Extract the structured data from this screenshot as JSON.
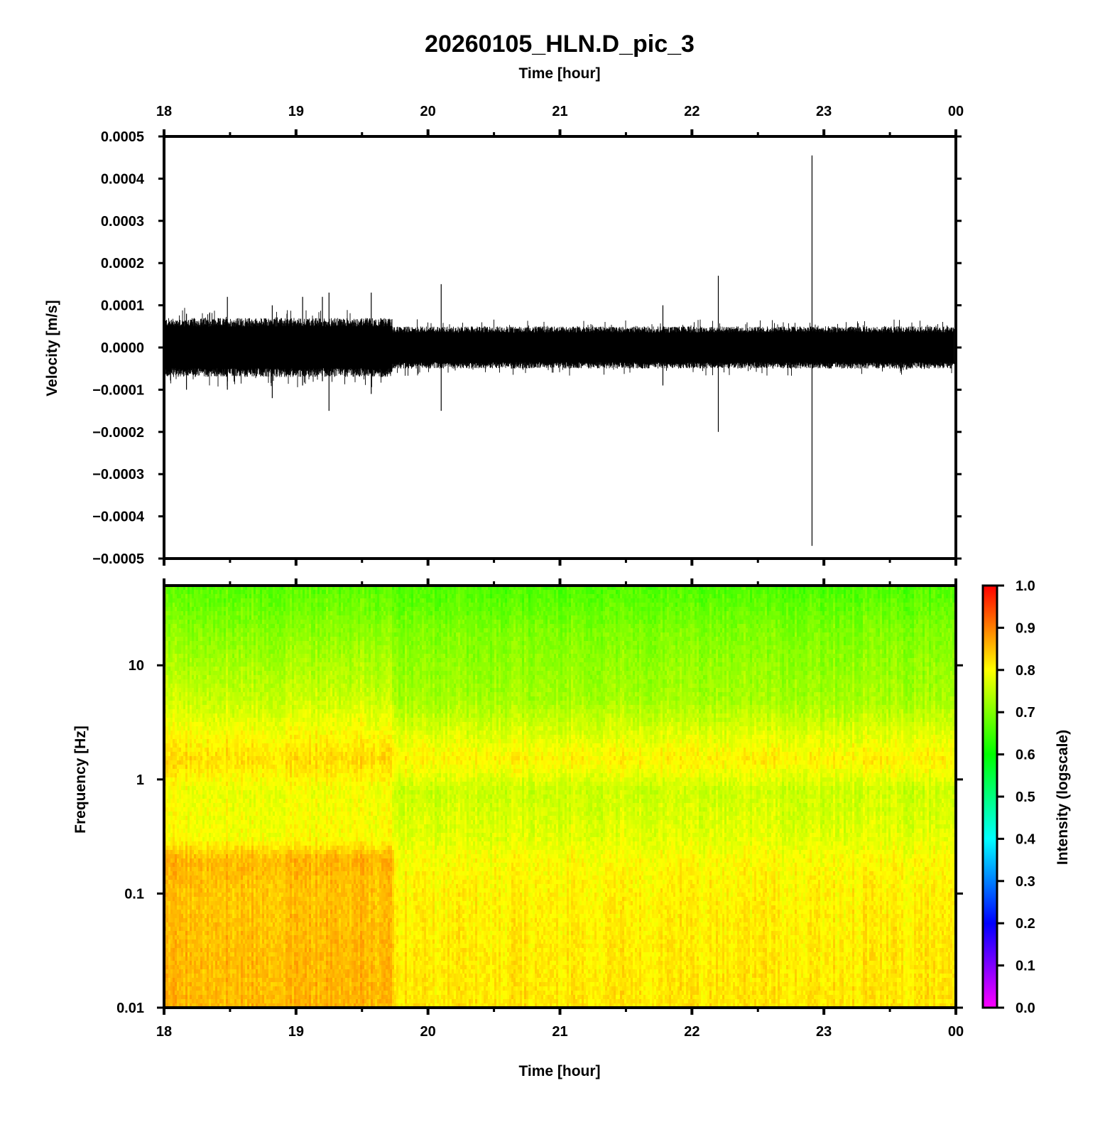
{
  "chart_data": [
    {
      "type": "line",
      "title": "20260105_HLN.D_pic_3",
      "xlabel_top": "Time [hour]",
      "ylabel": "Velocity [m/s]",
      "x_ticks": [
        "18",
        "19",
        "20",
        "21",
        "22",
        "23",
        "00"
      ],
      "xlim": [
        18,
        24
      ],
      "ylim": [
        -0.0005,
        0.0005
      ],
      "y_ticks": [
        "0.0005",
        "0.0004",
        "0.0003",
        "0.0002",
        "0.0001",
        "0.0000",
        "−0.0001",
        "−0.0002",
        "−0.0003",
        "−0.0004",
        "−0.0005"
      ],
      "y_tick_values": [
        0.0005,
        0.0004,
        0.0003,
        0.0002,
        0.0001,
        0.0,
        -0.0001,
        -0.0002,
        -0.0003,
        -0.0004,
        -0.0005
      ],
      "noise_envelope": [
        {
          "x_start": 18.0,
          "x_end": 19.73,
          "amplitude": 7e-05
        },
        {
          "x_start": 19.73,
          "x_end": 24.0,
          "amplitude": 5e-05
        }
      ],
      "spikes": [
        {
          "x": 18.17,
          "y_max": 8e-05,
          "y_min": -0.0001
        },
        {
          "x": 18.48,
          "y_max": 0.00012,
          "y_min": -0.0001
        },
        {
          "x": 18.82,
          "y_max": 0.0001,
          "y_min": -0.00012
        },
        {
          "x": 19.05,
          "y_max": 0.00012,
          "y_min": -9e-05
        },
        {
          "x": 19.2,
          "y_max": 0.00012,
          "y_min": -8e-05
        },
        {
          "x": 19.25,
          "y_max": 0.00013,
          "y_min": -0.00015
        },
        {
          "x": 19.57,
          "y_max": 0.00013,
          "y_min": -0.00011
        },
        {
          "x": 20.1,
          "y_max": 0.00015,
          "y_min": -0.00015
        },
        {
          "x": 21.78,
          "y_max": 0.0001,
          "y_min": -9e-05
        },
        {
          "x": 22.2,
          "y_max": 0.00017,
          "y_min": -0.0002
        },
        {
          "x": 22.91,
          "y_max": 0.000455,
          "y_min": -0.00047
        }
      ]
    },
    {
      "type": "heatmap",
      "xlabel": "Time [hour]",
      "ylabel": "Frequency [Hz]",
      "x_ticks": [
        "18",
        "19",
        "20",
        "21",
        "22",
        "23",
        "00"
      ],
      "xlim": [
        18,
        24
      ],
      "y_scale": "log",
      "ylim": [
        0.01,
        50
      ],
      "y_ticks": [
        "10",
        "1",
        "0.1",
        "0.01"
      ],
      "y_tick_values": [
        10,
        1,
        0.1,
        0.01
      ],
      "colorbar": {
        "label": "Intensity (logscale)",
        "range": [
          0.0,
          1.0
        ],
        "ticks": [
          "1.0",
          "0.9",
          "0.8",
          "0.7",
          "0.6",
          "0.5",
          "0.4",
          "0.3",
          "0.2",
          "0.1",
          "0.0"
        ],
        "tick_values": [
          1.0,
          0.9,
          0.8,
          0.7,
          0.6,
          0.5,
          0.4,
          0.3,
          0.2,
          0.1,
          0.0
        ],
        "colors": [
          "#ff00ff",
          "#0000ff",
          "#00ffff",
          "#00ff00",
          "#ffff00",
          "#ff0000"
        ]
      },
      "intensity_profile_before_1973h": [
        {
          "freq": 50,
          "intensity": 0.67
        },
        {
          "freq": 20,
          "intensity": 0.71
        },
        {
          "freq": 5,
          "intensity": 0.76
        },
        {
          "freq": 1.5,
          "intensity": 0.83
        },
        {
          "freq": 0.8,
          "intensity": 0.79
        },
        {
          "freq": 0.3,
          "intensity": 0.8
        },
        {
          "freq": 0.2,
          "intensity": 0.86
        },
        {
          "freq": 0.1,
          "intensity": 0.85
        },
        {
          "freq": 0.01,
          "intensity": 0.86
        }
      ],
      "intensity_profile_after_1973h": [
        {
          "freq": 50,
          "intensity": 0.66
        },
        {
          "freq": 20,
          "intensity": 0.7
        },
        {
          "freq": 5,
          "intensity": 0.73
        },
        {
          "freq": 1.5,
          "intensity": 0.81
        },
        {
          "freq": 0.8,
          "intensity": 0.76
        },
        {
          "freq": 0.3,
          "intensity": 0.78
        },
        {
          "freq": 0.2,
          "intensity": 0.8
        },
        {
          "freq": 0.1,
          "intensity": 0.81
        },
        {
          "freq": 0.01,
          "intensity": 0.82
        }
      ]
    }
  ]
}
